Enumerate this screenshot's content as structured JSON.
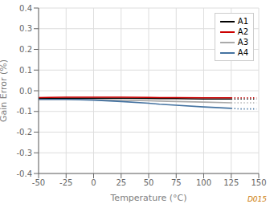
{
  "chart_data": {
    "type": "line",
    "xlabel": "Temperature (°C)",
    "ylabel": "Gain Error (%)",
    "xlim": [
      -50,
      150
    ],
    "ylim": [
      -0.4,
      0.4
    ],
    "xticks": [
      -50,
      -25,
      0,
      25,
      50,
      75,
      100,
      125,
      150
    ],
    "yticks": [
      -0.4,
      -0.3,
      -0.2,
      -0.1,
      {
        "value": 0.0,
        "label": "0.0"
      },
      0.1,
      0.2,
      0.3,
      0.4
    ],
    "grid": true,
    "legend": "upper right",
    "annotations": [
      {
        "text": "D015",
        "color": "#cc7700"
      }
    ],
    "series": [
      {
        "name": "A1",
        "color": "#000000",
        "line_style": "solid",
        "x": [
          -50,
          -40,
          -25,
          0,
          25,
          50,
          60,
          75,
          100,
          125
        ],
        "values": [
          -0.038,
          -0.037,
          -0.036,
          -0.036,
          -0.036,
          -0.037,
          -0.038,
          -0.038,
          -0.04,
          -0.04
        ]
      },
      {
        "color": "#000000",
        "line_style": "dotted",
        "x": [
          125,
          133,
          141,
          148
        ],
        "values": [
          -0.04,
          -0.04,
          -0.04,
          -0.04
        ]
      },
      {
        "name": "A2",
        "color": "#cc0000",
        "line_style": "solid",
        "x": [
          -50,
          -40,
          -25,
          0,
          25,
          50,
          60,
          75,
          100,
          125
        ],
        "values": [
          -0.033,
          -0.032,
          -0.031,
          -0.031,
          -0.031,
          -0.032,
          -0.033,
          -0.033,
          -0.034,
          -0.034
        ]
      },
      {
        "color": "#cc0000",
        "line_style": "dotted",
        "x": [
          125,
          133,
          141,
          148
        ],
        "values": [
          -0.034,
          -0.034,
          -0.034,
          -0.034
        ]
      },
      {
        "name": "A3",
        "color": "#aaaaaa",
        "line_style": "solid",
        "x": [
          -50,
          -25,
          0,
          25,
          50,
          60,
          75,
          100,
          125
        ],
        "values": [
          -0.042,
          -0.042,
          -0.043,
          -0.045,
          -0.048,
          -0.05,
          -0.052,
          -0.055,
          -0.058
        ]
      },
      {
        "color": "#aaaaaa",
        "line_style": "dotted",
        "x": [
          125,
          133,
          141,
          148
        ],
        "values": [
          -0.058,
          -0.058,
          -0.058,
          -0.058
        ]
      },
      {
        "name": "A4",
        "color": "#4472a0",
        "line_style": "solid",
        "x": [
          -50,
          -25,
          0,
          25,
          50,
          60,
          75,
          100,
          125
        ],
        "values": [
          -0.042,
          -0.042,
          -0.045,
          -0.052,
          -0.06,
          -0.065,
          -0.07,
          -0.078,
          -0.085
        ]
      },
      {
        "color": "#4472a0",
        "line_style": "dotted",
        "x": [
          125,
          133,
          141,
          148
        ],
        "values": [
          -0.085,
          -0.088,
          -0.088,
          -0.088
        ]
      }
    ]
  }
}
